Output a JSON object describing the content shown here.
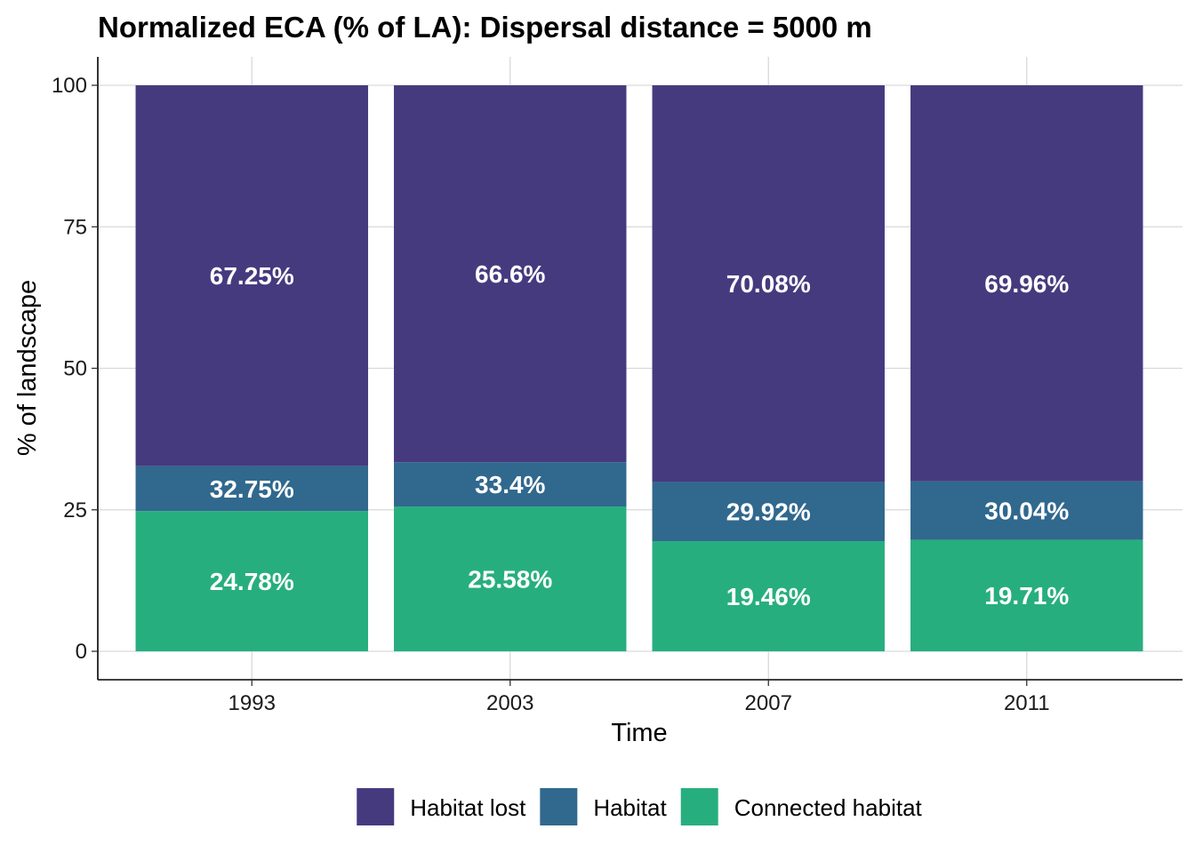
{
  "chart_data": {
    "type": "bar",
    "stacked": true,
    "title": "Normalized ECA (% of LA): Dispersal distance = 5000 m",
    "xlabel": "Time",
    "ylabel": "% of landscape",
    "categories": [
      "1993",
      "2003",
      "2007",
      "2011"
    ],
    "ylim": [
      0,
      100
    ],
    "yticks": [
      0,
      25,
      50,
      75,
      100
    ],
    "grid": true,
    "legend_position": "bottom",
    "series": [
      {
        "name": "Connected habitat",
        "color": "#27ae7f",
        "values": [
          24.78,
          25.58,
          19.46,
          19.71
        ],
        "labels": [
          "24.78%",
          "25.58%",
          "19.46%",
          "19.71%"
        ]
      },
      {
        "name": "Habitat",
        "color": "#31688e",
        "values": [
          7.97,
          7.82,
          10.46,
          10.33
        ],
        "labels": [
          "32.75%",
          "33.4%",
          "29.92%",
          "30.04%"
        ]
      },
      {
        "name": "Habitat lost",
        "color": "#463a7f",
        "values": [
          67.25,
          66.6,
          70.08,
          69.96
        ],
        "labels": [
          "67.25%",
          "66.6%",
          "70.08%",
          "69.96%"
        ]
      }
    ],
    "legend_order": [
      "Habitat lost",
      "Habitat",
      "Connected habitat"
    ]
  }
}
